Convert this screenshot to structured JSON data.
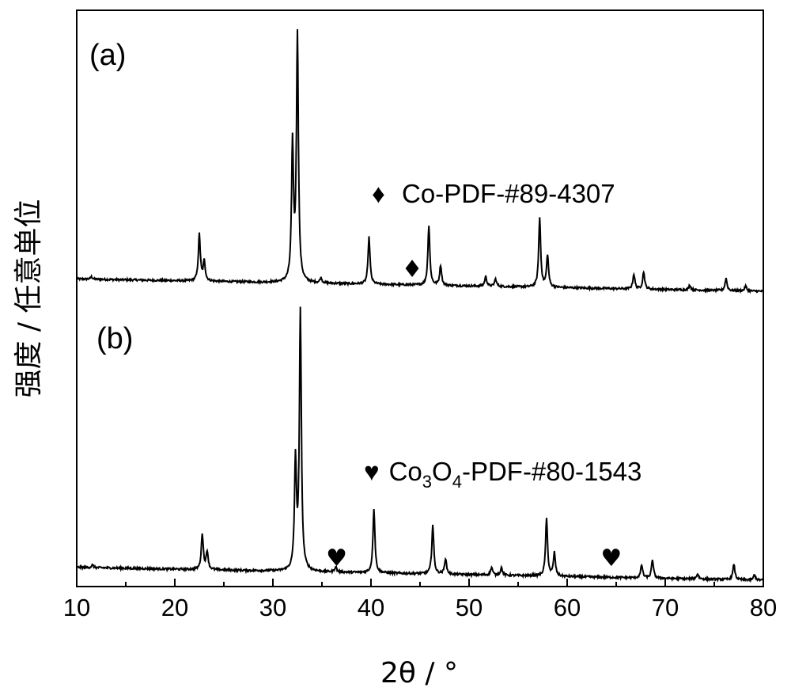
{
  "chart_data": {
    "type": "line",
    "xlabel": "2θ / °",
    "ylabel": "强度 / 任意单位",
    "xlim": [
      10,
      80
    ],
    "xticks": [
      10,
      20,
      30,
      40,
      50,
      60,
      70,
      80
    ],
    "x_minor_tick_step": 5,
    "y_ticks_shown": false,
    "grid": false,
    "legend": "none",
    "line_color": "#000000",
    "panels": [
      {
        "label": "(a)",
        "annotation": {
          "symbol": "♦",
          "text": "Co-PDF-#89-4307"
        },
        "markers": [
          {
            "symbol": "♦",
            "x": 44.2
          }
        ],
        "baseline": {
          "start": 0.05,
          "end": 0.0
        },
        "peaks": [
          {
            "x": 11.5,
            "h": 0.01
          },
          {
            "x": 22.5,
            "h": 0.19
          },
          {
            "x": 23.0,
            "h": 0.08
          },
          {
            "x": 32.0,
            "h": 0.55
          },
          {
            "x": 32.5,
            "h": 1.0
          },
          {
            "x": 34.9,
            "h": 0.02
          },
          {
            "x": 39.8,
            "h": 0.19
          },
          {
            "x": 45.9,
            "h": 0.24
          },
          {
            "x": 47.1,
            "h": 0.08
          },
          {
            "x": 51.7,
            "h": 0.04
          },
          {
            "x": 52.7,
            "h": 0.03
          },
          {
            "x": 57.2,
            "h": 0.28
          },
          {
            "x": 58.0,
            "h": 0.13
          },
          {
            "x": 66.8,
            "h": 0.06
          },
          {
            "x": 67.8,
            "h": 0.07
          },
          {
            "x": 72.5,
            "h": 0.02
          },
          {
            "x": 76.2,
            "h": 0.05
          },
          {
            "x": 78.2,
            "h": 0.02
          }
        ]
      },
      {
        "label": "(b)",
        "annotation": {
          "symbol": "♥",
          "text": "Co",
          "sub1": "3",
          "mid": "O",
          "sub2": "4",
          "rest": "-PDF-#80-1543"
        },
        "markers": [
          {
            "symbol": "♥",
            "x": 36.5
          },
          {
            "symbol": "♥",
            "x": 64.5
          }
        ],
        "baseline": {
          "start": 0.05,
          "end": 0.0
        },
        "peaks": [
          {
            "x": 11.6,
            "h": 0.01
          },
          {
            "x": 22.8,
            "h": 0.14
          },
          {
            "x": 23.3,
            "h": 0.07
          },
          {
            "x": 32.3,
            "h": 0.42
          },
          {
            "x": 32.8,
            "h": 1.0
          },
          {
            "x": 36.4,
            "h": 0.02
          },
          {
            "x": 40.3,
            "h": 0.25
          },
          {
            "x": 46.3,
            "h": 0.19
          },
          {
            "x": 47.6,
            "h": 0.06
          },
          {
            "x": 52.3,
            "h": 0.03
          },
          {
            "x": 53.3,
            "h": 0.03
          },
          {
            "x": 57.9,
            "h": 0.22
          },
          {
            "x": 58.7,
            "h": 0.09
          },
          {
            "x": 67.6,
            "h": 0.05
          },
          {
            "x": 68.7,
            "h": 0.07
          },
          {
            "x": 73.3,
            "h": 0.02
          },
          {
            "x": 77.0,
            "h": 0.06
          },
          {
            "x": 79.1,
            "h": 0.02
          }
        ]
      }
    ]
  }
}
